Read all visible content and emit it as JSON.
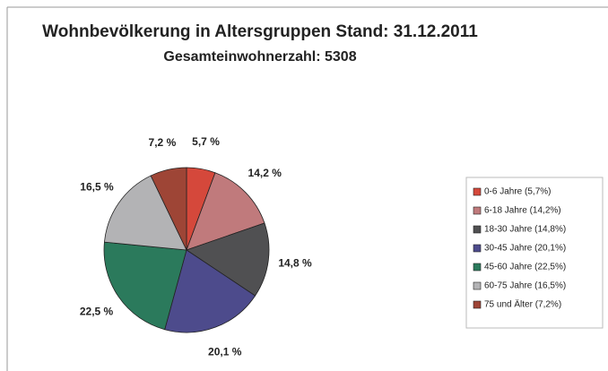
{
  "chart_data": {
    "type": "pie",
    "title": "Wohnbevölkerung in Altersgruppen Stand: 31.12.2011",
    "subtitle": "Gesamteinwohnerzahl: 5308",
    "categories": [
      "0-6 Jahre (5,7%)",
      "6-18 Jahre (14,2%)",
      "18-30 Jahre (14,8%)",
      "30-45 Jahre (20,1%)",
      "45-60 Jahre (22,5%)",
      "60-75 Jahre (16,5%)",
      "75 und Älter (7,2%)"
    ],
    "values": [
      5.7,
      14.2,
      14.8,
      20.1,
      22.5,
      16.5,
      7.2
    ],
    "value_labels": [
      "5,7 %",
      "14,2 %",
      "14,8 %",
      "20,1 %",
      "22,5 %",
      "16,5 %",
      "7,2 %"
    ],
    "colors": [
      "#d5483b",
      "#c07a7c",
      "#505052",
      "#4d4b8c",
      "#2b7a5c",
      "#b3b3b5",
      "#9e4536"
    ],
    "legend": "right"
  }
}
